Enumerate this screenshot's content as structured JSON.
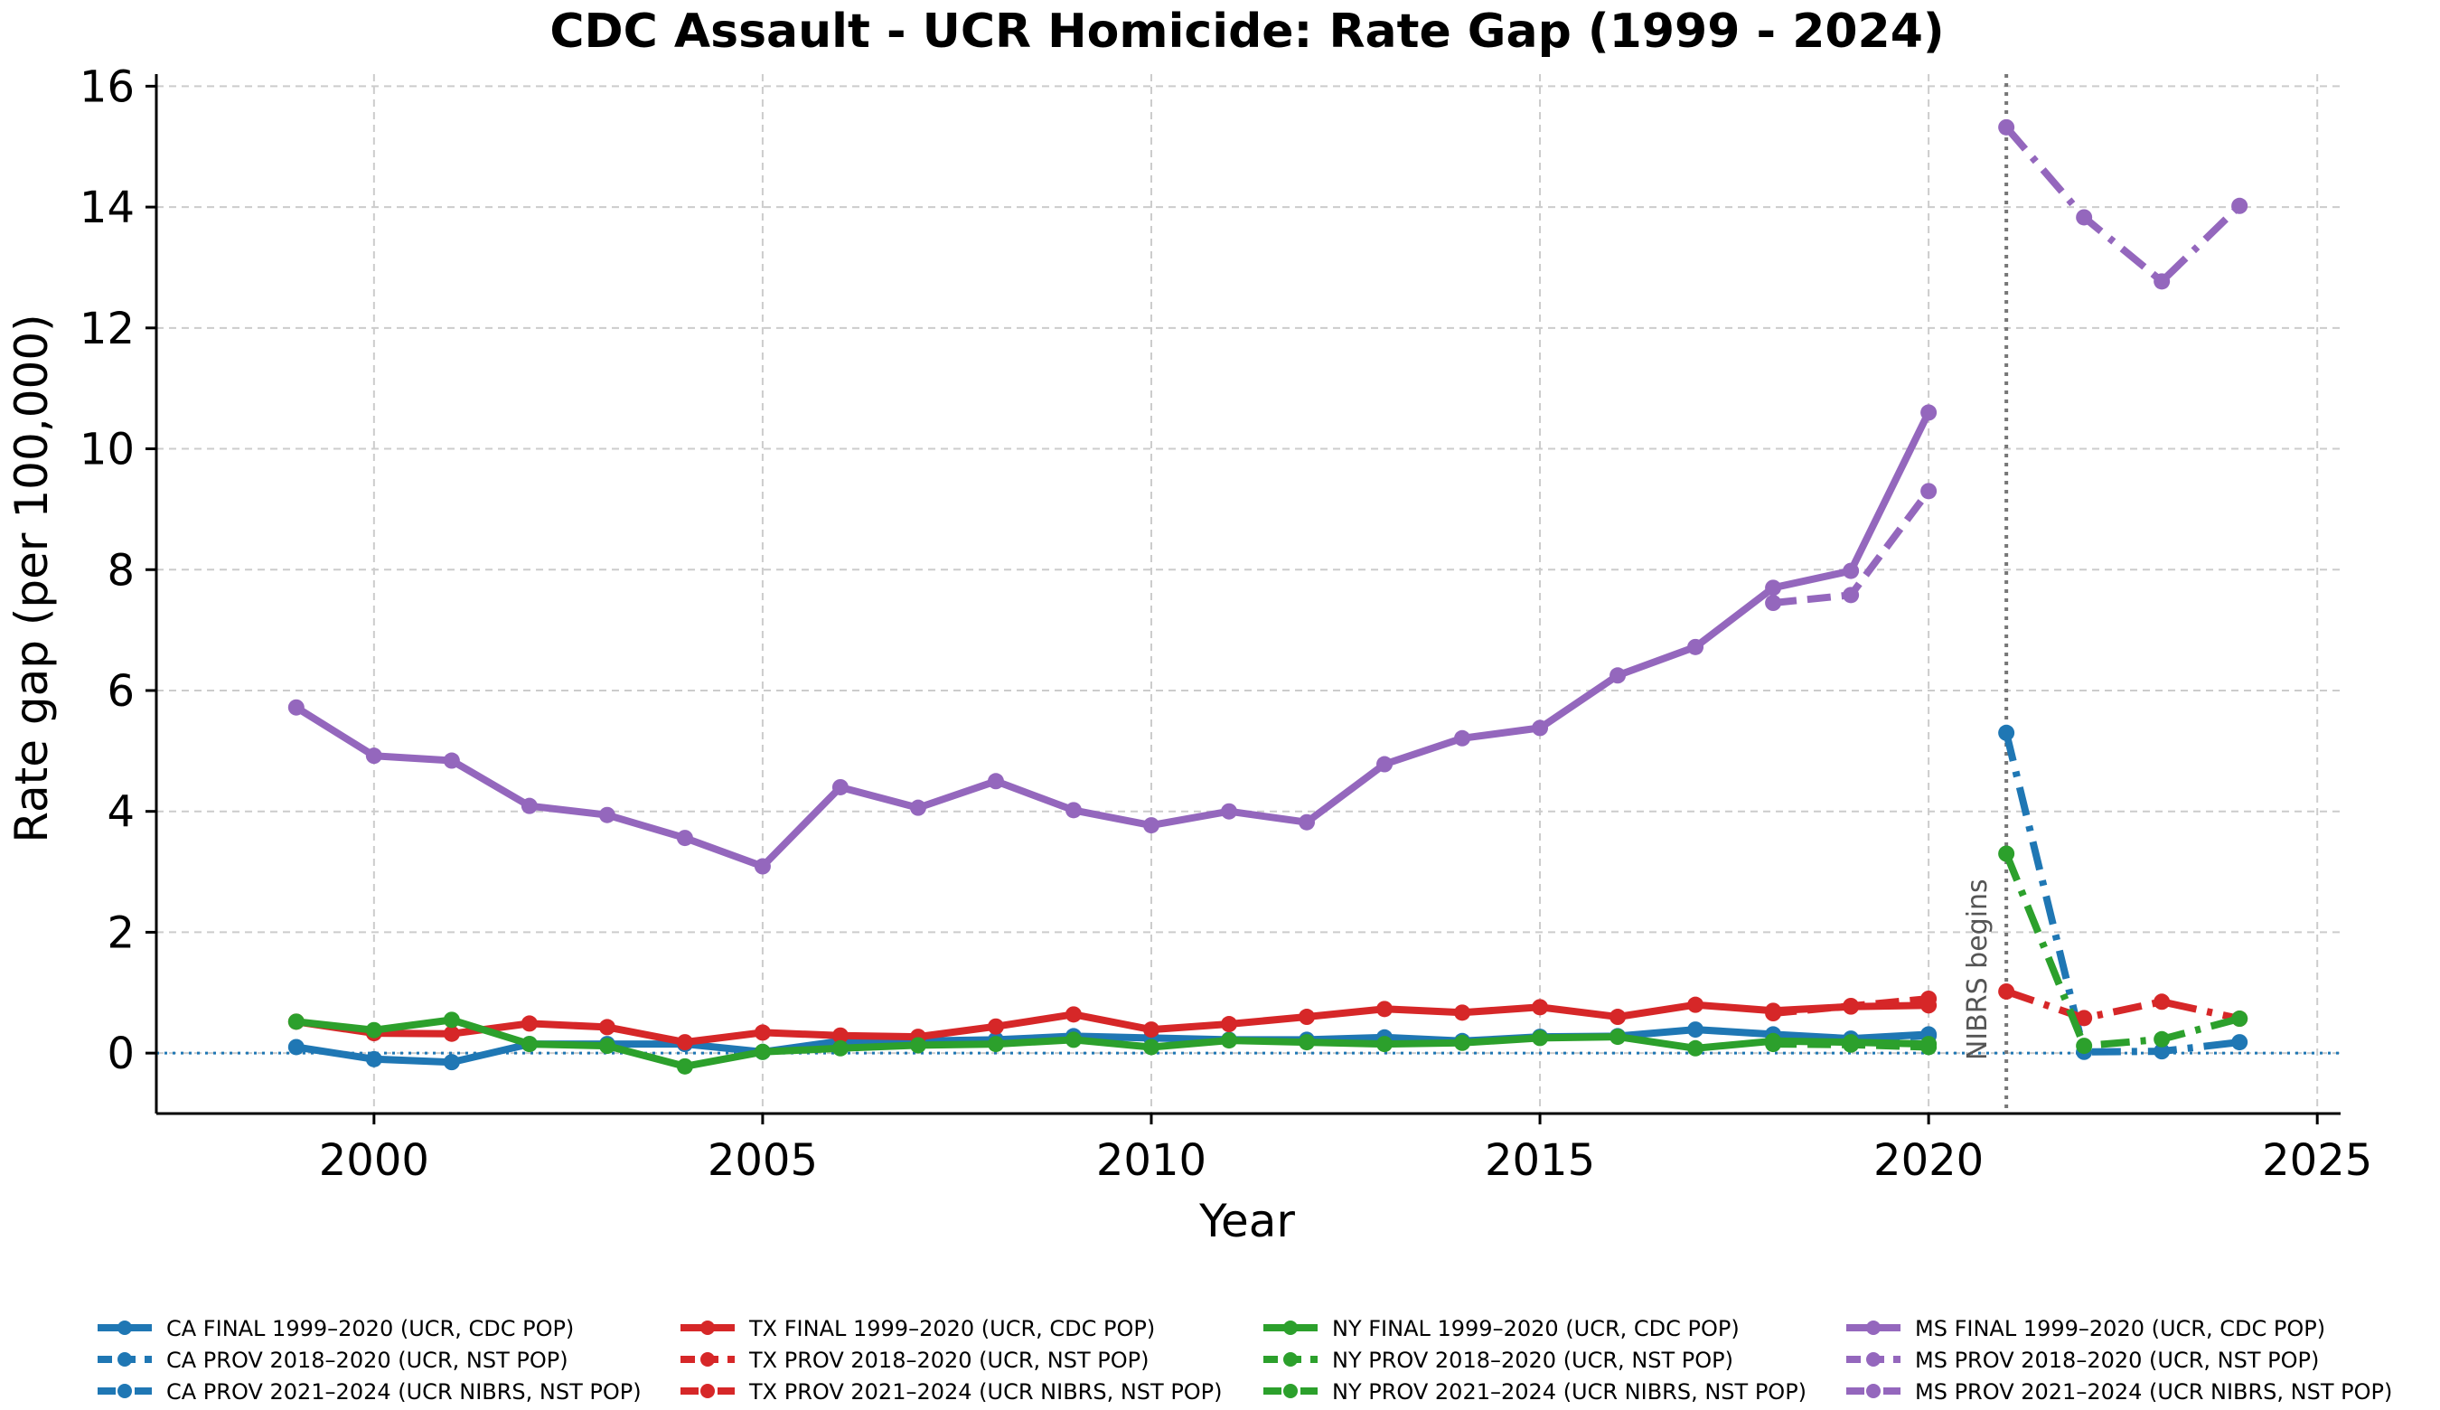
{
  "chart_data": {
    "type": "line",
    "title": "CDC Assault - UCR Homicide: Rate Gap (1999 - 2024)",
    "xlabel": "Year",
    "ylabel": "Rate gap (per 100,000)",
    "xlim": [
      1997.2,
      2025.3
    ],
    "ylim": [
      -1.0,
      16.2
    ],
    "xticks": [
      2000,
      2005,
      2010,
      2015,
      2020,
      2025
    ],
    "yticks": [
      0,
      2,
      4,
      6,
      8,
      10,
      12,
      14,
      16
    ],
    "grid": true,
    "zero_line": true,
    "legend_placement": "bottom",
    "annotations": [
      {
        "text": "NIBRS begins",
        "x": 2021
      }
    ],
    "series": [
      {
        "name": "CA FINAL 1999–2020 (UCR, CDC POP)",
        "color": "#1f77b4",
        "style": "solid",
        "x": [
          1999,
          2000,
          2001,
          2002,
          2003,
          2004,
          2005,
          2006,
          2007,
          2008,
          2009,
          2010,
          2011,
          2012,
          2013,
          2014,
          2015,
          2016,
          2017,
          2018,
          2019,
          2020
        ],
        "y": [
          0.1,
          -0.1,
          -0.15,
          0.15,
          0.15,
          0.15,
          0.02,
          0.2,
          0.2,
          0.22,
          0.28,
          0.25,
          0.22,
          0.22,
          0.26,
          0.2,
          0.27,
          0.28,
          0.39,
          0.31,
          0.24,
          0.31
        ]
      },
      {
        "name": "CA PROV 2018–2020 (UCR, NST POP)",
        "color": "#1f77b4",
        "style": "dashed",
        "x": [
          2018,
          2019,
          2020
        ],
        "y": [
          0.28,
          0.22,
          0.29
        ]
      },
      {
        "name": "CA PROV 2021–2024 (UCR NIBRS, NST POP)",
        "color": "#1f77b4",
        "style": "dashdot",
        "x": [
          2021,
          2022,
          2023,
          2024
        ],
        "y": [
          5.3,
          0.02,
          0.03,
          0.18
        ]
      },
      {
        "name": "TX FINAL 1999–2020 (UCR, CDC POP)",
        "color": "#d62728",
        "style": "solid",
        "x": [
          1999,
          2000,
          2001,
          2002,
          2003,
          2004,
          2005,
          2006,
          2007,
          2008,
          2009,
          2010,
          2011,
          2012,
          2013,
          2014,
          2015,
          2016,
          2017,
          2018,
          2019,
          2020
        ],
        "y": [
          0.52,
          0.33,
          0.32,
          0.49,
          0.43,
          0.18,
          0.34,
          0.29,
          0.27,
          0.44,
          0.64,
          0.39,
          0.48,
          0.6,
          0.73,
          0.67,
          0.76,
          0.6,
          0.8,
          0.7,
          0.77,
          0.79
        ]
      },
      {
        "name": "TX PROV 2018–2020 (UCR, NST POP)",
        "color": "#d62728",
        "style": "dashed",
        "x": [
          2018,
          2019,
          2020
        ],
        "y": [
          0.66,
          0.78,
          0.9
        ]
      },
      {
        "name": "TX PROV 2021–2024 (UCR NIBRS, NST POP)",
        "color": "#d62728",
        "style": "dashdot",
        "x": [
          2021,
          2022,
          2023,
          2024
        ],
        "y": [
          1.02,
          0.58,
          0.85,
          0.57
        ]
      },
      {
        "name": "NY FINAL 1999–2020 (UCR, CDC POP)",
        "color": "#2ca02c",
        "style": "solid",
        "x": [
          1999,
          2000,
          2001,
          2002,
          2003,
          2004,
          2005,
          2006,
          2007,
          2008,
          2009,
          2010,
          2011,
          2012,
          2013,
          2014,
          2015,
          2016,
          2017,
          2018,
          2019,
          2020
        ],
        "y": [
          0.52,
          0.38,
          0.55,
          0.15,
          0.12,
          -0.22,
          0.02,
          0.08,
          0.13,
          0.15,
          0.22,
          0.1,
          0.21,
          0.18,
          0.15,
          0.17,
          0.25,
          0.27,
          0.08,
          0.2,
          0.18,
          0.15
        ]
      },
      {
        "name": "NY PROV 2018–2020 (UCR, NST POP)",
        "color": "#2ca02c",
        "style": "dashed",
        "x": [
          2018,
          2019,
          2020
        ],
        "y": [
          0.15,
          0.14,
          0.1
        ]
      },
      {
        "name": "NY PROV 2021–2024 (UCR NIBRS, NST POP)",
        "color": "#2ca02c",
        "style": "dashdot",
        "x": [
          2021,
          2022,
          2023,
          2024
        ],
        "y": [
          3.3,
          0.12,
          0.23,
          0.57
        ]
      },
      {
        "name": "MS FINAL 1999–2020 (UCR, CDC POP)",
        "color": "#9467bd",
        "style": "solid",
        "x": [
          1999,
          2000,
          2001,
          2002,
          2003,
          2004,
          2005,
          2006,
          2007,
          2008,
          2009,
          2010,
          2011,
          2012,
          2013,
          2014,
          2015,
          2016,
          2017,
          2018,
          2019,
          2020
        ],
        "y": [
          5.72,
          4.92,
          4.84,
          4.09,
          3.94,
          3.56,
          3.09,
          4.4,
          4.06,
          4.5,
          4.02,
          3.77,
          4.0,
          3.82,
          4.78,
          5.21,
          5.38,
          6.25,
          6.72,
          7.7,
          7.98,
          10.6
        ]
      },
      {
        "name": "MS PROV 2018–2020 (UCR, NST POP)",
        "color": "#9467bd",
        "style": "dashed",
        "x": [
          2018,
          2019,
          2020
        ],
        "y": [
          7.45,
          7.58,
          9.3
        ]
      },
      {
        "name": "MS PROV 2021–2024 (UCR NIBRS, NST POP)",
        "color": "#9467bd",
        "style": "dashdot",
        "x": [
          2021,
          2022,
          2023,
          2024
        ],
        "y": [
          15.32,
          13.83,
          12.77,
          14.02
        ]
      }
    ]
  }
}
